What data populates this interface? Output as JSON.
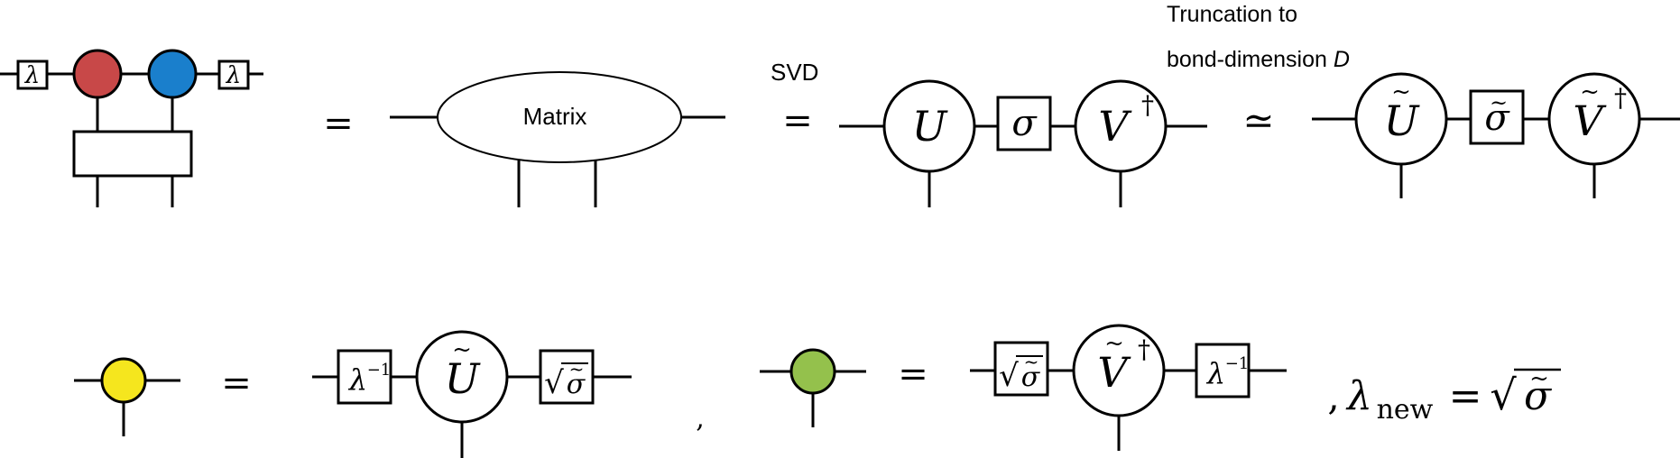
{
  "labels": {
    "matrix": "Matrix",
    "svd": "SVD",
    "truncation_line1": "Truncation to",
    "truncation_line2_prefix": "bond-dimension ",
    "truncation_line2_var": "D"
  },
  "symbols": {
    "lambda": "λ",
    "lambda_inv_base": "λ",
    "lambda_inv_exp": "−1",
    "U": "U",
    "sigma": "σ",
    "V": "V",
    "dagger": "†",
    "tilde": "~",
    "sqrt": "√",
    "equals": "=",
    "approx": "≃",
    "comma": ",",
    "lambda_new_lead": ",",
    "lambda_new_base": "λ",
    "lambda_new_sub": "new",
    "lambda_new_equals": "="
  },
  "colors": {
    "red_tensor": "#C84848",
    "blue_tensor": "#1A7FCC",
    "yellow_tensor": "#F5E61E",
    "green_tensor": "#94C14C"
  }
}
